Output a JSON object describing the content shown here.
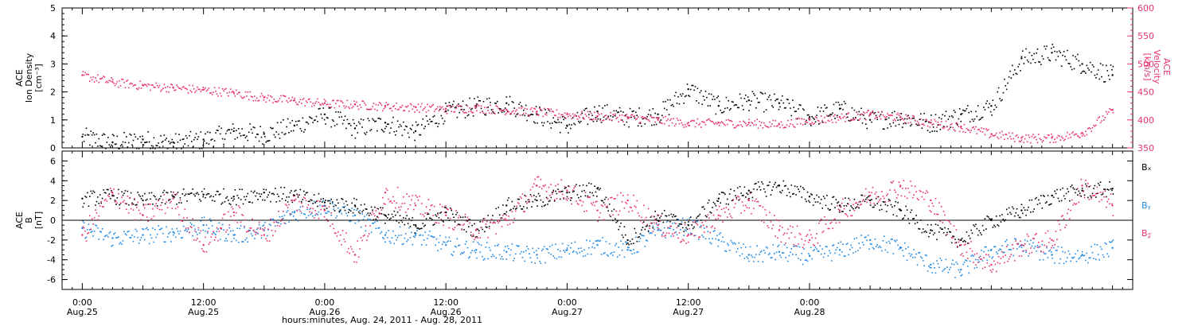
{
  "colors": {
    "black": "#000000",
    "red": "#e8336a",
    "blue": "#1e88e5"
  },
  "chart_data": [
    {
      "type": "scatter",
      "panel": "top",
      "ylabel_left": [
        "ACE",
        "Ion Density",
        "[cm⁻³]"
      ],
      "ylabel_right": [
        "ACE",
        "Velocity",
        "[km/s]"
      ],
      "ylim_left": [
        0,
        5
      ],
      "ylim_right": [
        350,
        600
      ],
      "yticks_left": [
        "0",
        "1",
        "2",
        "3",
        "4",
        "5"
      ],
      "yticks_right": [
        "350",
        "400",
        "450",
        "500",
        "550",
        "600"
      ],
      "series": [
        {
          "color": "black",
          "axis": "left",
          "x": [
            0,
            3,
            6,
            9,
            12,
            15,
            18,
            21,
            24,
            27,
            30,
            33,
            36,
            39,
            42,
            45,
            48,
            51,
            54,
            57,
            60,
            63,
            66,
            69,
            72,
            75,
            78,
            81,
            84,
            87,
            90,
            93,
            96,
            99,
            102
          ],
          "values": [
            0.4,
            0.2,
            0.3,
            0.2,
            0.3,
            0.6,
            0.5,
            0.8,
            1.2,
            0.7,
            0.9,
            0.6,
            1.3,
            1.5,
            1.6,
            1.2,
            0.8,
            1.3,
            1.1,
            1.2,
            2.1,
            1.5,
            1.7,
            1.6,
            1.1,
            1.4,
            1.0,
            1.1,
            0.9,
            1.2,
            1.5,
            3.2,
            3.4,
            3.0,
            2.6
          ]
        },
        {
          "color": "red",
          "axis": "right",
          "x": [
            0,
            3,
            6,
            9,
            12,
            15,
            18,
            21,
            24,
            27,
            30,
            33,
            36,
            39,
            42,
            45,
            48,
            51,
            54,
            57,
            60,
            63,
            66,
            69,
            72,
            75,
            78,
            81,
            84,
            87,
            90,
            93,
            96,
            99,
            102
          ],
          "values": [
            480,
            468,
            462,
            458,
            454,
            449,
            440,
            435,
            430,
            428,
            425,
            423,
            420,
            422,
            418,
            415,
            410,
            407,
            405,
            400,
            395,
            395,
            395,
            392,
            400,
            405,
            410,
            405,
            395,
            388,
            375,
            368,
            368,
            377,
            418
          ]
        }
      ]
    },
    {
      "type": "scatter",
      "panel": "bottom",
      "ylabel_left": [
        "ACE",
        "B",
        "[nT]"
      ],
      "ylim": [
        -7,
        7
      ],
      "yticks": [
        "-6",
        "-4",
        "-2",
        "0",
        "2",
        "4",
        "6"
      ],
      "legend": [
        "Bₓ",
        "Bᵧ",
        "B𝓏"
      ],
      "series": [
        {
          "name": "Bx",
          "color": "black",
          "x": [
            0,
            3,
            6,
            9,
            12,
            15,
            18,
            21,
            24,
            27,
            30,
            33,
            36,
            39,
            42,
            45,
            48,
            51,
            54,
            57,
            60,
            63,
            66,
            69,
            72,
            75,
            78,
            81,
            84,
            87,
            90,
            93,
            96,
            99,
            102
          ],
          "values": [
            2.2,
            2.5,
            2.0,
            2.4,
            2.6,
            2.4,
            2.8,
            2.5,
            1.8,
            1.5,
            0.5,
            -0.5,
            0.8,
            -1.0,
            1.5,
            2.0,
            2.8,
            3.2,
            -2.0,
            0.5,
            -0.5,
            2.2,
            3.0,
            3.5,
            2.4,
            1.5,
            2.0,
            1.0,
            -1.0,
            -2.0,
            0.0,
            1.0,
            2.5,
            3.0,
            3.2
          ]
        },
        {
          "name": "By",
          "color": "blue",
          "x": [
            0,
            3,
            6,
            9,
            12,
            15,
            18,
            21,
            24,
            27,
            30,
            33,
            36,
            39,
            42,
            45,
            48,
            51,
            54,
            57,
            60,
            63,
            66,
            69,
            72,
            75,
            78,
            81,
            84,
            87,
            90,
            93,
            96,
            99,
            102
          ],
          "values": [
            -0.8,
            -1.8,
            -1.5,
            -1.2,
            -0.5,
            -1.5,
            -1.0,
            0.8,
            1.5,
            0.5,
            -1.5,
            -1.5,
            -2.5,
            -3.0,
            -3.2,
            -3.5,
            -3.0,
            -2.5,
            -3.0,
            -1.0,
            -0.5,
            -2.0,
            -3.5,
            -3.2,
            -3.6,
            -3.0,
            -2.0,
            -2.8,
            -4.5,
            -5.0,
            -3.0,
            -2.5,
            -3.5,
            -3.5,
            -2.8
          ]
        },
        {
          "name": "Bz",
          "color": "red",
          "x": [
            0,
            3,
            6,
            9,
            12,
            15,
            18,
            21,
            24,
            27,
            30,
            33,
            36,
            39,
            42,
            45,
            48,
            51,
            54,
            57,
            60,
            63,
            66,
            69,
            72,
            75,
            78,
            81,
            84,
            87,
            90,
            93,
            96,
            99,
            102
          ],
          "values": [
            -1.5,
            2.8,
            0.5,
            2.2,
            -2.5,
            0.8,
            -1.5,
            2.0,
            1.0,
            -3.5,
            2.8,
            1.5,
            0.5,
            -1.0,
            0.0,
            3.5,
            3.0,
            1.0,
            2.0,
            -0.5,
            -1.5,
            0.5,
            2.0,
            -1.0,
            -2.0,
            1.0,
            2.5,
            3.5,
            2.0,
            -2.5,
            -4.5,
            -2.5,
            -2.0,
            3.5,
            1.5
          ]
        }
      ]
    }
  ],
  "xaxis": {
    "xlim": [
      -2,
      104
    ],
    "ticks": [
      {
        "x": 0,
        "time": "0:00",
        "date": "Aug.25"
      },
      {
        "x": 12,
        "time": "12:00",
        "date": "Aug.25"
      },
      {
        "x": 24,
        "time": "0:00",
        "date": "Aug.26"
      },
      {
        "x": 36,
        "time": "12:00",
        "date": "Aug.26"
      },
      {
        "x": 48,
        "time": "0:00",
        "date": "Aug.27"
      },
      {
        "x": 60,
        "time": "12:00",
        "date": "Aug.27"
      },
      {
        "x": 72,
        "time": "0:00",
        "date": "Aug.28"
      }
    ],
    "label": "hours:minutes, Aug. 24, 2011 - Aug. 28, 2011"
  }
}
